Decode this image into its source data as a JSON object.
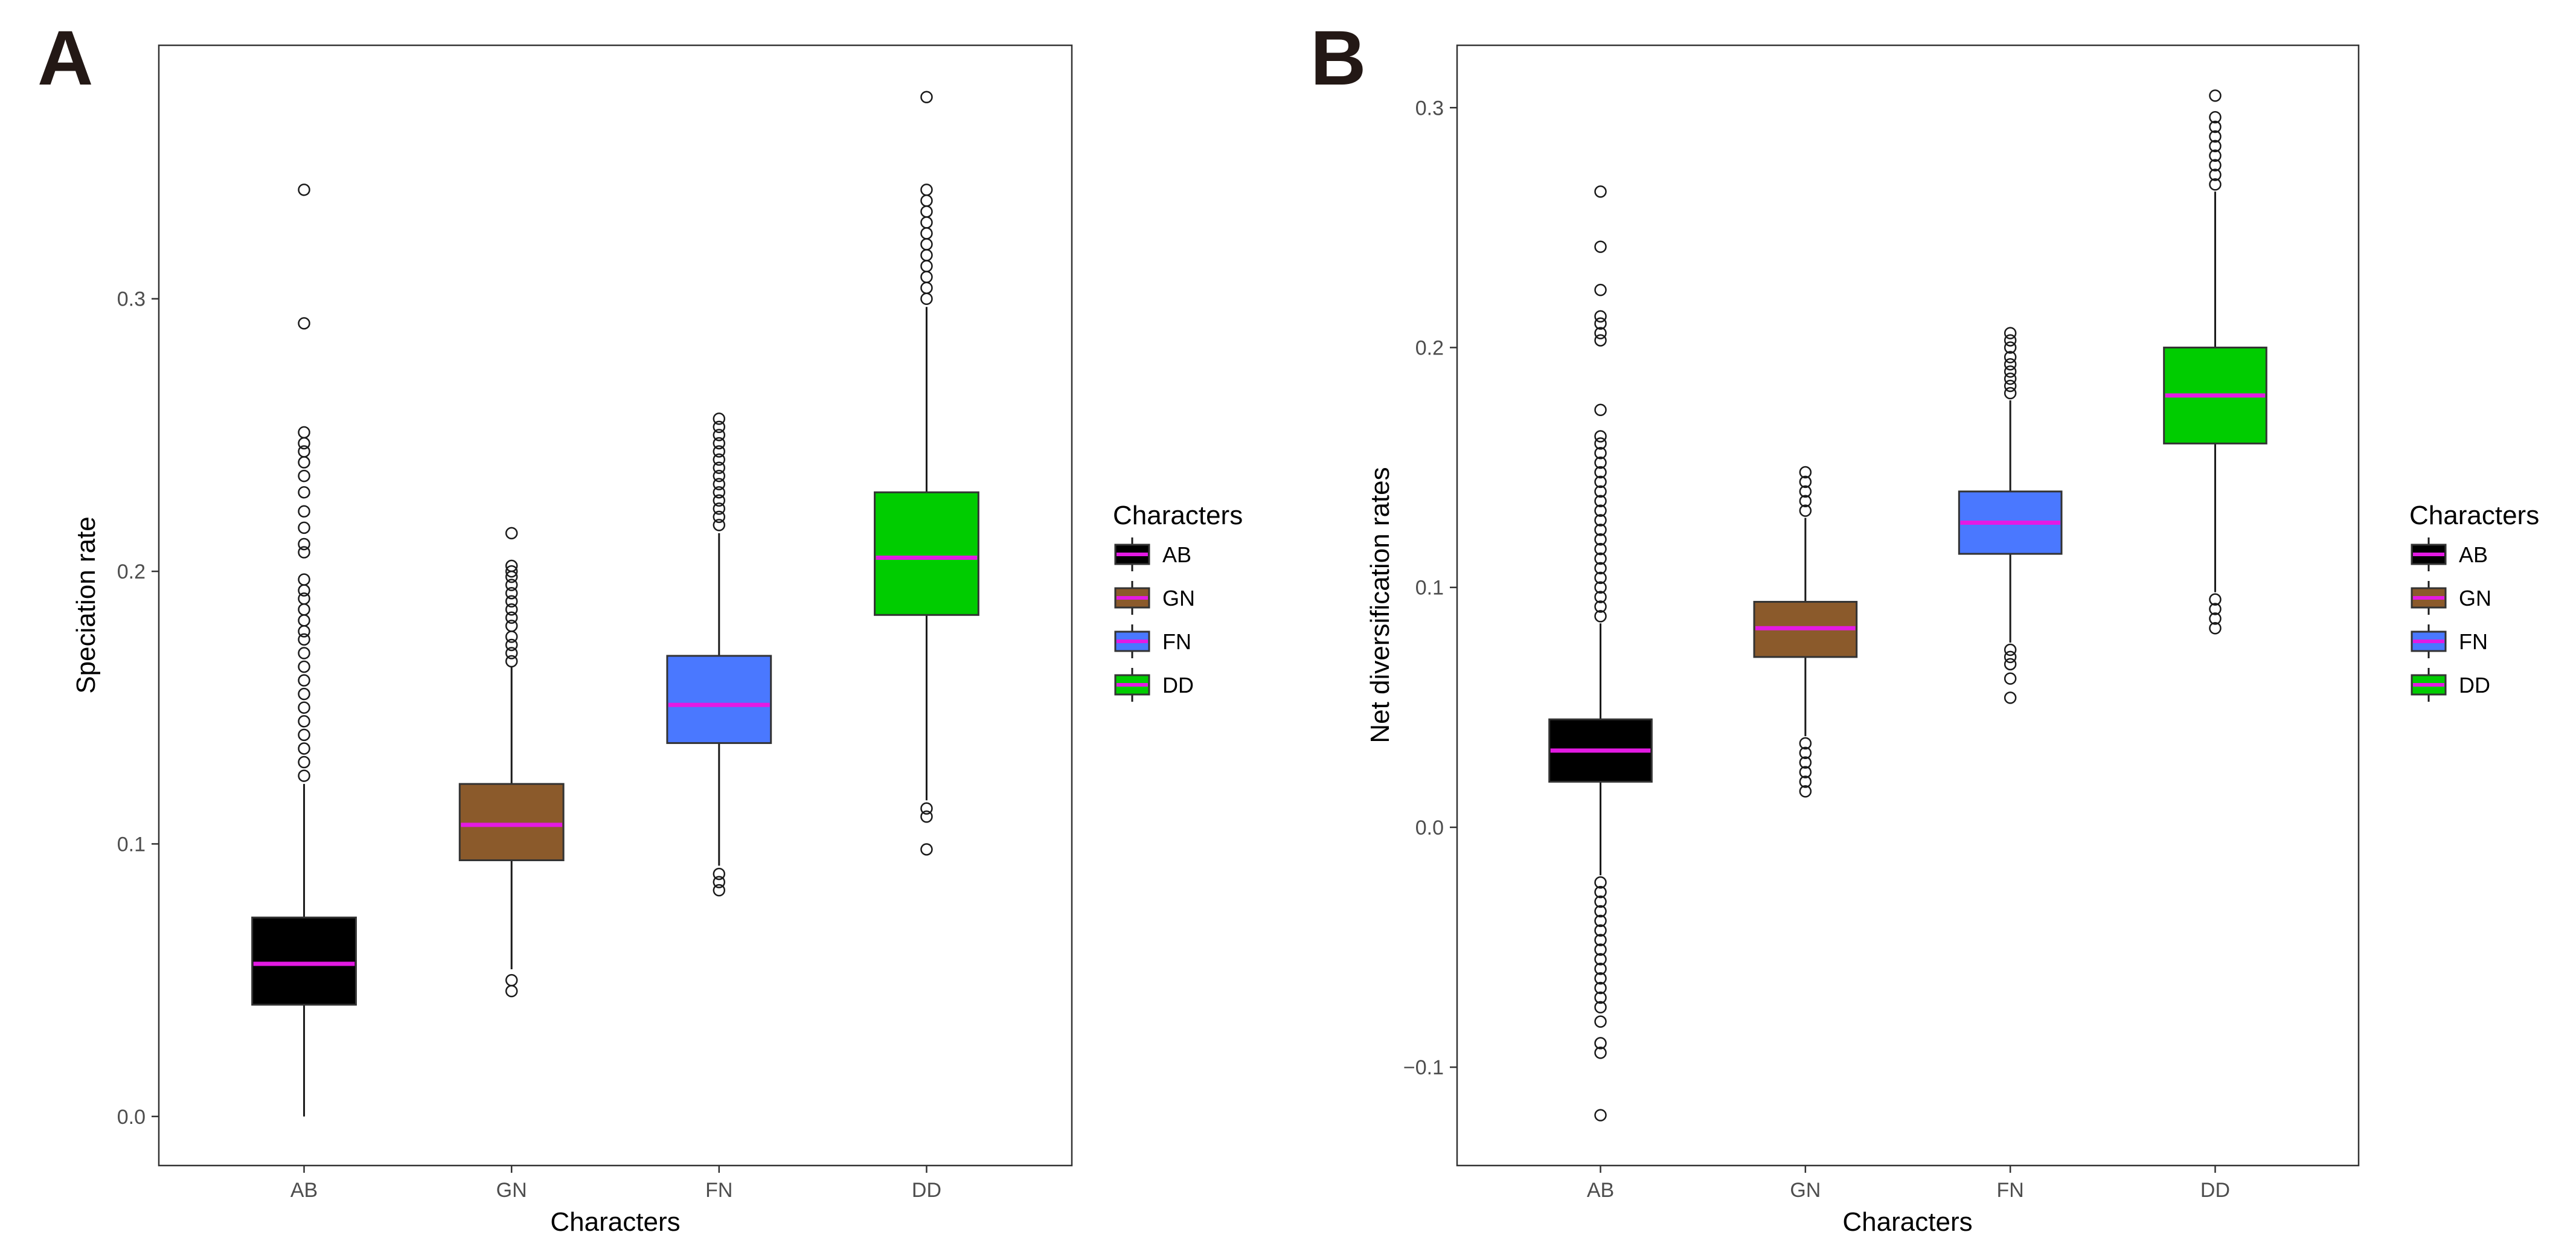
{
  "chart_data": [
    {
      "type": "box",
      "panel_label": "A",
      "xlabel": "Characters",
      "ylabel": "Speciation rate",
      "ylim": [
        -0.018,
        0.393
      ],
      "yticks": [
        0.0,
        0.1,
        0.2,
        0.3
      ],
      "ytick_labels": [
        "0.0",
        "0.1",
        "0.2",
        "0.3"
      ],
      "categories": [
        "AB",
        "GN",
        "FN",
        "DD"
      ],
      "legend": {
        "title": "Characters",
        "position": "right",
        "entries": [
          "AB",
          "GN",
          "FN",
          "DD"
        ]
      },
      "boxes": [
        {
          "category": "AB",
          "color": "#000000",
          "whisker_low": 0.0,
          "q1": 0.041,
          "median": 0.056,
          "q3": 0.073,
          "whisker_high": 0.122,
          "outliers_high": [
            0.125,
            0.13,
            0.135,
            0.14,
            0.145,
            0.15,
            0.155,
            0.16,
            0.165,
            0.17,
            0.175,
            0.178,
            0.182,
            0.186,
            0.19,
            0.193,
            0.197,
            0.207,
            0.21,
            0.216,
            0.222,
            0.229,
            0.235,
            0.24,
            0.244,
            0.247,
            0.251,
            0.291,
            0.34
          ],
          "outliers_low": []
        },
        {
          "category": "GN",
          "color": "#8b5a2b",
          "whisker_low": 0.054,
          "q1": 0.094,
          "median": 0.107,
          "q3": 0.122,
          "whisker_high": 0.165,
          "outliers_high": [
            0.167,
            0.17,
            0.173,
            0.176,
            0.18,
            0.183,
            0.186,
            0.189,
            0.192,
            0.195,
            0.198,
            0.2,
            0.202,
            0.214
          ],
          "outliers_low": [
            0.05,
            0.046
          ]
        },
        {
          "category": "FN",
          "color": "#4a78ff",
          "whisker_low": 0.092,
          "q1": 0.137,
          "median": 0.151,
          "q3": 0.169,
          "whisker_high": 0.214,
          "outliers_high": [
            0.217,
            0.22,
            0.223,
            0.226,
            0.229,
            0.232,
            0.235,
            0.238,
            0.241,
            0.244,
            0.247,
            0.25,
            0.253,
            0.256
          ],
          "outliers_low": [
            0.089,
            0.086,
            0.083
          ]
        },
        {
          "category": "DD",
          "color": "#00cc00",
          "whisker_low": 0.116,
          "q1": 0.184,
          "median": 0.205,
          "q3": 0.229,
          "whisker_high": 0.297,
          "outliers_high": [
            0.3,
            0.304,
            0.308,
            0.312,
            0.316,
            0.32,
            0.324,
            0.328,
            0.332,
            0.336,
            0.34,
            0.374
          ],
          "outliers_low": [
            0.113,
            0.11,
            0.098
          ]
        }
      ]
    },
    {
      "type": "box",
      "panel_label": "B",
      "xlabel": "Characters",
      "ylabel": "Net diversification rates",
      "ylim": [
        -0.141,
        0.326
      ],
      "yticks": [
        -0.1,
        0.0,
        0.1,
        0.2,
        0.3
      ],
      "ytick_labels": [
        "−0.1",
        "0.0",
        "0.1",
        "0.2",
        "0.3"
      ],
      "categories": [
        "AB",
        "GN",
        "FN",
        "DD"
      ],
      "legend": {
        "title": "Characters",
        "position": "right",
        "entries": [
          "AB",
          "GN",
          "FN",
          "DD"
        ]
      },
      "boxes": [
        {
          "category": "AB",
          "color": "#000000",
          "whisker_low": -0.02,
          "q1": 0.019,
          "median": 0.032,
          "q3": 0.045,
          "whisker_high": 0.085,
          "outliers_high": [
            0.088,
            0.092,
            0.096,
            0.1,
            0.104,
            0.108,
            0.112,
            0.116,
            0.12,
            0.124,
            0.128,
            0.132,
            0.136,
            0.14,
            0.144,
            0.148,
            0.152,
            0.156,
            0.16,
            0.163,
            0.174,
            0.203,
            0.206,
            0.21,
            0.213,
            0.224,
            0.242,
            0.265
          ],
          "outliers_low": [
            -0.023,
            -0.027,
            -0.031,
            -0.035,
            -0.039,
            -0.043,
            -0.047,
            -0.051,
            -0.055,
            -0.059,
            -0.063,
            -0.067,
            -0.071,
            -0.075,
            -0.081,
            -0.09,
            -0.094,
            -0.12
          ]
        },
        {
          "category": "GN",
          "color": "#8b5a2b",
          "whisker_low": 0.038,
          "q1": 0.071,
          "median": 0.083,
          "q3": 0.094,
          "whisker_high": 0.129,
          "outliers_high": [
            0.132,
            0.136,
            0.14,
            0.144,
            0.148
          ],
          "outliers_low": [
            0.035,
            0.031,
            0.027,
            0.023,
            0.019,
            0.015
          ]
        },
        {
          "category": "FN",
          "color": "#4a78ff",
          "whisker_low": 0.077,
          "q1": 0.114,
          "median": 0.127,
          "q3": 0.14,
          "whisker_high": 0.178,
          "outliers_high": [
            0.181,
            0.184,
            0.187,
            0.19,
            0.193,
            0.196,
            0.2,
            0.203,
            0.206
          ],
          "outliers_low": [
            0.074,
            0.071,
            0.068,
            0.062,
            0.054
          ]
        },
        {
          "category": "DD",
          "color": "#00cc00",
          "whisker_low": 0.098,
          "q1": 0.16,
          "median": 0.18,
          "q3": 0.2,
          "whisker_high": 0.265,
          "outliers_high": [
            0.268,
            0.272,
            0.276,
            0.28,
            0.284,
            0.288,
            0.292,
            0.296,
            0.305
          ],
          "outliers_low": [
            0.095,
            0.091,
            0.087,
            0.083
          ]
        }
      ]
    }
  ],
  "median_color": "#e31ae3"
}
